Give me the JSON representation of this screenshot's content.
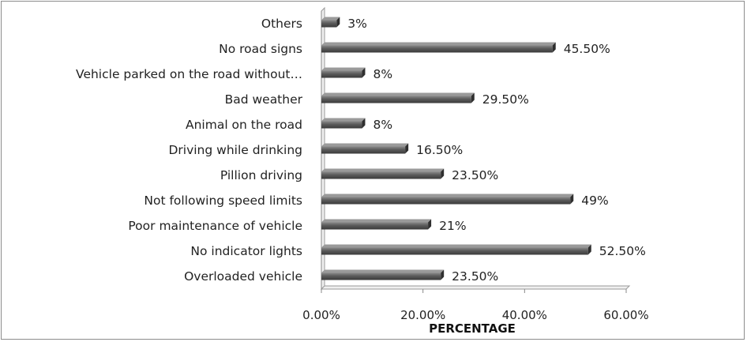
{
  "chart_data": {
    "type": "bar",
    "orientation": "horizontal",
    "categories": [
      "Overloaded vehicle",
      "No indicator lights",
      "Poor maintenance of vehicle",
      "Not following speed limits",
      "Pillion driving",
      "Driving while drinking",
      "Animal on the road",
      "Bad weather",
      "Vehicle parked on the road without…",
      "No road signs",
      "Others"
    ],
    "values": [
      23.5,
      52.5,
      21,
      49,
      23.5,
      16.5,
      8,
      29.5,
      8,
      45.5,
      3
    ],
    "value_labels": [
      "23.50%",
      "52.50%",
      "21%",
      "49%",
      "23.50%",
      "16.50%",
      "8%",
      "29.50%",
      "8%",
      "45.50%",
      "3%"
    ],
    "xlabel": "PERCENTAGE",
    "xlim": [
      0,
      60
    ],
    "xticks": [
      "0.00%",
      "20.00%",
      "40.00%",
      "60.00%"
    ],
    "grid": false,
    "legend": "none",
    "bar_color": "#595959"
  }
}
